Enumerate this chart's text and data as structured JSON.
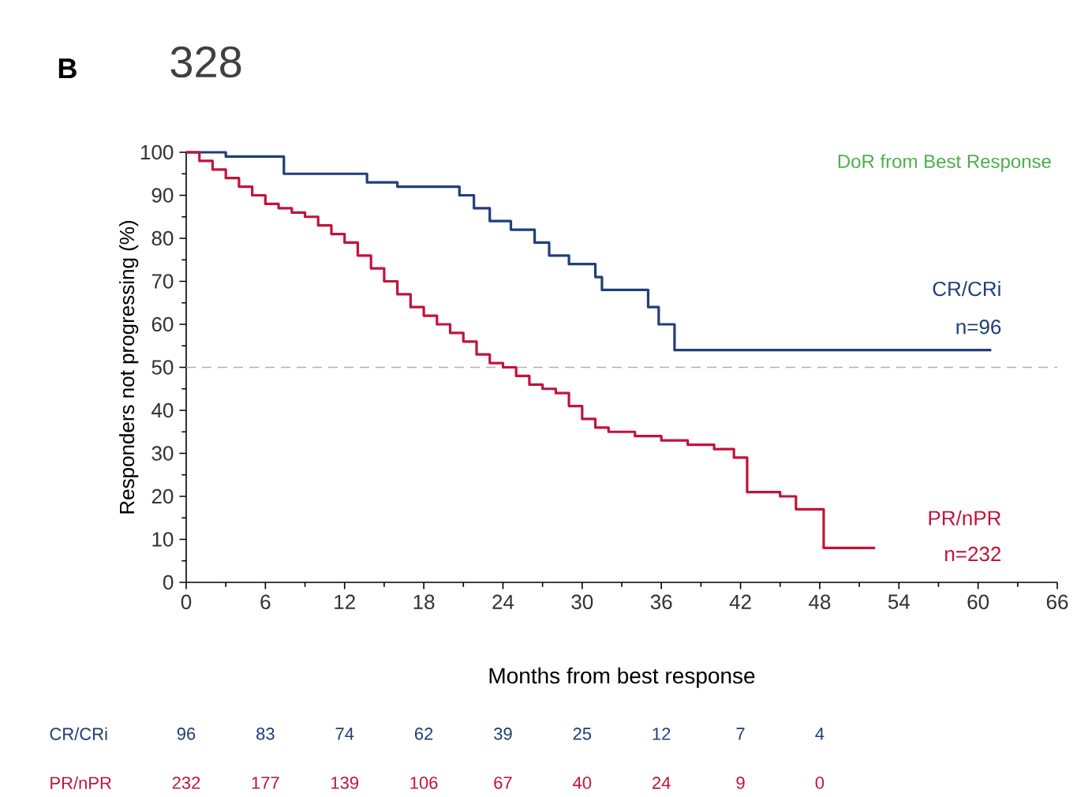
{
  "chart_data": {
    "type": "step",
    "subtitle": "DoR from Best Response",
    "xlabel": "Months from best response",
    "ylabel": "Responders not progressing (%)",
    "xlim": [
      0,
      66
    ],
    "ylim": [
      0,
      100
    ],
    "xticks": [
      0,
      6,
      12,
      18,
      24,
      30,
      36,
      42,
      48,
      54,
      60,
      66
    ],
    "yticks": [
      0,
      10,
      20,
      30,
      40,
      50,
      60,
      70,
      80,
      90,
      100
    ],
    "series": [
      {
        "name": "CR/CRi",
        "color": "#1f3f7a",
        "x": [
          0,
          3,
          7.4,
          13.7,
          16,
          20.7,
          21.8,
          23,
          24.6,
          26.4,
          27.5,
          29,
          31,
          31.5,
          35,
          35.8,
          37,
          61
        ],
        "values": [
          100,
          99,
          95,
          93,
          92,
          90,
          87,
          84,
          82,
          79,
          76,
          74,
          71,
          68,
          64,
          60,
          54,
          54
        ]
      },
      {
        "name": "PR/nPR",
        "color": "#c0143c",
        "x": [
          0,
          1,
          2,
          3,
          4,
          5,
          6,
          7,
          8,
          9,
          10,
          11,
          12,
          13,
          14,
          15,
          16,
          17,
          18,
          19,
          20,
          21,
          22,
          23,
          24,
          25,
          26,
          27,
          28,
          29,
          30,
          31,
          32,
          34,
          36,
          38,
          40,
          41.5,
          42.5,
          45,
          46.2,
          48.3,
          52.2
        ],
        "values": [
          100,
          98,
          96,
          94,
          92,
          90,
          88,
          87,
          86,
          85,
          83,
          81,
          79,
          76,
          73,
          70,
          67,
          64,
          62,
          60,
          58,
          56,
          53,
          51,
          50,
          48,
          46,
          45,
          44,
          41,
          38,
          36,
          35,
          34,
          33,
          32,
          31,
          29,
          21,
          20,
          17,
          8,
          8
        ]
      }
    ],
    "ref_lines": [
      {
        "axis": "y",
        "value": 50,
        "color": "#b0b0b0",
        "line_style": "dashed"
      }
    ],
    "annotations": [
      "B",
      "328",
      "n=96",
      "n=232",
      "96",
      "83",
      "74",
      "62",
      "39",
      "25",
      "12",
      "7",
      "4",
      "232",
      "177",
      "139",
      "106",
      "67",
      "40",
      "24",
      "9",
      "0"
    ]
  }
}
